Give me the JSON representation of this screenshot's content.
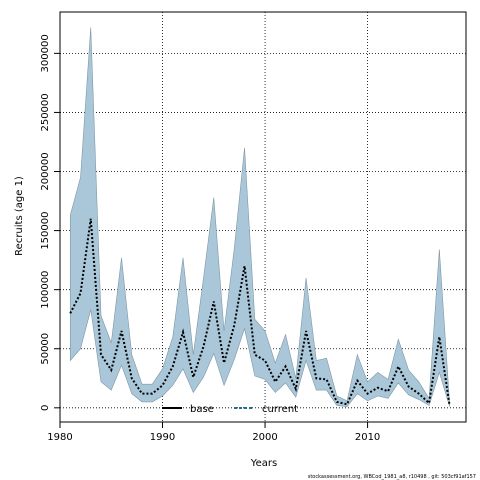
{
  "chart_data": {
    "type": "line",
    "title": "",
    "xlabel": "Years",
    "ylabel": "Recruits (age 1)",
    "xlim": [
      1980,
      2019.6
    ],
    "ylim": [
      -12000,
      335000
    ],
    "x_ticks": [
      1980,
      1990,
      2000,
      2010
    ],
    "y_ticks": [
      0,
      50000,
      100000,
      150000,
      200000,
      250000,
      300000
    ],
    "x": [
      1981,
      1982,
      1983,
      1984,
      1985,
      1986,
      1987,
      1988,
      1989,
      1990,
      1991,
      1992,
      1993,
      1994,
      1995,
      1996,
      1997,
      1998,
      1999,
      2000,
      2001,
      2002,
      2003,
      2004,
      2005,
      2006,
      2007,
      2008,
      2009,
      2010,
      2011,
      2012,
      2013,
      2014,
      2015,
      2016,
      2017,
      2018
    ],
    "series": [
      {
        "name": "current",
        "role": "estimate",
        "values": [
          80000,
          97000,
          160000,
          45000,
          32000,
          65000,
          25000,
          12000,
          12000,
          19000,
          35000,
          64000,
          26000,
          52000,
          90000,
          38000,
          70000,
          120000,
          45000,
          40000,
          22000,
          35000,
          16000,
          65000,
          25000,
          24000,
          5000,
          3000,
          23000,
          12000,
          17000,
          14000,
          35000,
          18000,
          12000,
          4000,
          60000,
          2000
        ],
        "color": "#000000"
      },
      {
        "name": "upper",
        "role": "confidence-upper",
        "values": [
          163000,
          195000,
          322000,
          78000,
          55000,
          127000,
          45000,
          20000,
          20000,
          33000,
          60000,
          127000,
          45000,
          110000,
          178000,
          65000,
          135000,
          220000,
          75000,
          65000,
          38000,
          62000,
          25000,
          110000,
          40000,
          42000,
          10000,
          6000,
          45000,
          22000,
          30000,
          24000,
          58000,
          32000,
          22000,
          8000,
          134000,
          4000
        ]
      },
      {
        "name": "lower",
        "role": "confidence-lower",
        "values": [
          40000,
          50000,
          83000,
          22000,
          15000,
          36000,
          12000,
          5000,
          5000,
          10000,
          19000,
          33000,
          13000,
          26000,
          46000,
          19000,
          41000,
          67000,
          27000,
          24000,
          13000,
          21000,
          9000,
          40000,
          15000,
          15000,
          2000,
          1000,
          12000,
          6000,
          10000,
          8000,
          21000,
          11000,
          7000,
          2000,
          30000,
          1000
        ]
      }
    ],
    "band_color": "#a9c7d8",
    "grid": true,
    "legend": {
      "placement": "bottom-center",
      "entries": [
        {
          "label": "base",
          "style": "solid",
          "color": "#000000"
        },
        {
          "label": "current",
          "style": "dotted",
          "color": "#1f6f8b"
        }
      ]
    }
  },
  "credit": "stockassessment.org, WBCod_1981_a8, r10498 , git: 503cf91af157"
}
